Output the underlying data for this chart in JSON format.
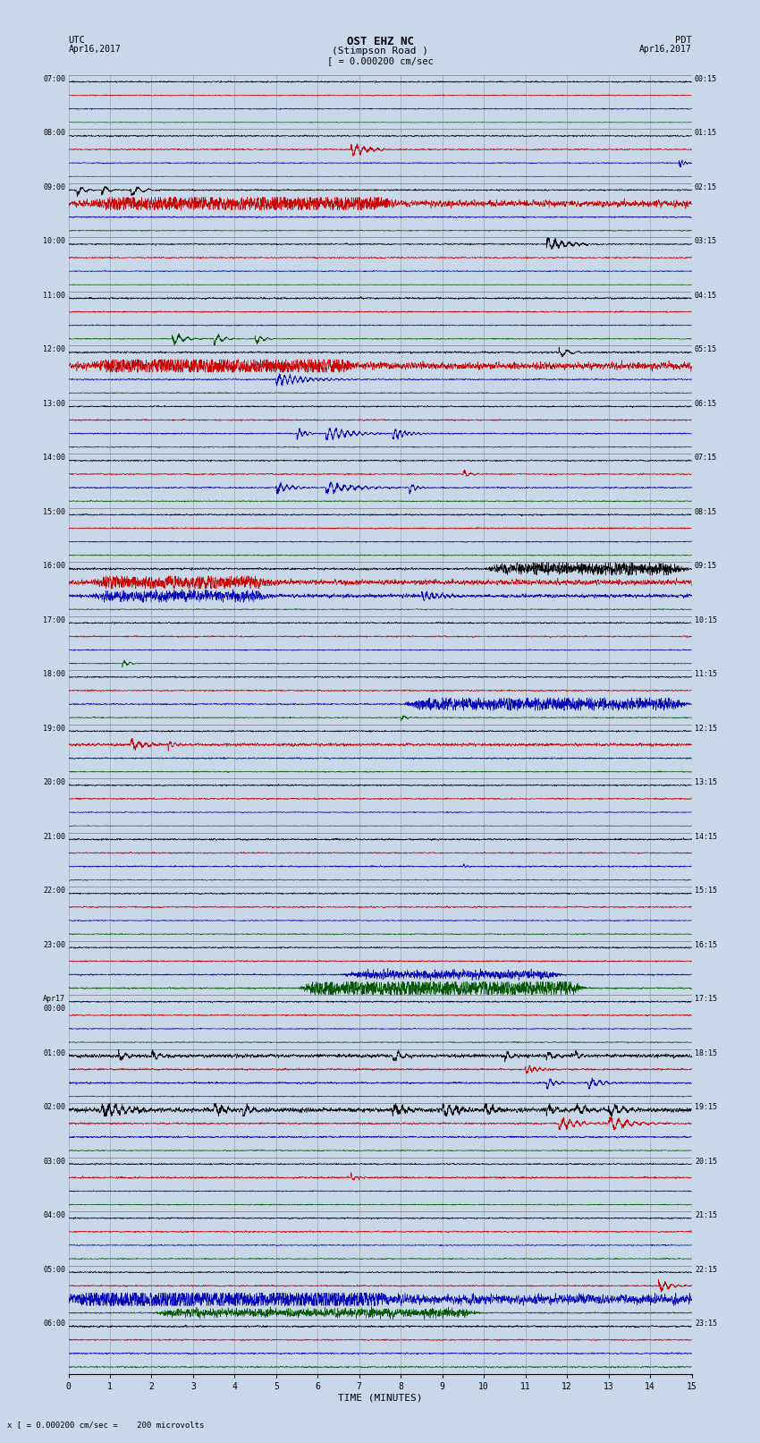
{
  "title_line1": "OST EHZ NC",
  "title_line2": "(Stimpson Road )",
  "title_line3": "[ = 0.000200 cm/sec",
  "label_utc": "UTC",
  "label_date_left": "Apr16,2017",
  "label_pdt": "PDT",
  "label_date_right": "Apr16,2017",
  "xlabel": "TIME (MINUTES)",
  "footer": "x [ = 0.000200 cm/sec =    200 microvolts",
  "xlim": [
    0,
    15
  ],
  "xticks": [
    0,
    1,
    2,
    3,
    4,
    5,
    6,
    7,
    8,
    9,
    10,
    11,
    12,
    13,
    14,
    15
  ],
  "bg_color": "#c8d8e8",
  "trace_black": "#000000",
  "trace_red": "#cc0000",
  "trace_blue": "#0000bb",
  "trace_green": "#005500",
  "grid_color": "#888888",
  "rows": [
    {
      "utc": "07:00",
      "pdt": "00:15"
    },
    {
      "utc": "08:00",
      "pdt": "01:15"
    },
    {
      "utc": "09:00",
      "pdt": "02:15"
    },
    {
      "utc": "10:00",
      "pdt": "03:15"
    },
    {
      "utc": "11:00",
      "pdt": "04:15"
    },
    {
      "utc": "12:00",
      "pdt": "05:15"
    },
    {
      "utc": "13:00",
      "pdt": "06:15"
    },
    {
      "utc": "14:00",
      "pdt": "07:15"
    },
    {
      "utc": "15:00",
      "pdt": "08:15"
    },
    {
      "utc": "16:00",
      "pdt": "09:15"
    },
    {
      "utc": "17:00",
      "pdt": "10:15"
    },
    {
      "utc": "18:00",
      "pdt": "11:15"
    },
    {
      "utc": "19:00",
      "pdt": "12:15"
    },
    {
      "utc": "20:00",
      "pdt": "13:15"
    },
    {
      "utc": "21:00",
      "pdt": "14:15"
    },
    {
      "utc": "22:00",
      "pdt": "15:15"
    },
    {
      "utc": "23:00",
      "pdt": "16:15"
    },
    {
      "utc": "Apr17\n00:00",
      "pdt": "17:15"
    },
    {
      "utc": "01:00",
      "pdt": "18:15"
    },
    {
      "utc": "02:00",
      "pdt": "19:15"
    },
    {
      "utc": "03:00",
      "pdt": "20:15"
    },
    {
      "utc": "04:00",
      "pdt": "21:15"
    },
    {
      "utc": "05:00",
      "pdt": "22:15"
    },
    {
      "utc": "06:00",
      "pdt": "23:15"
    }
  ],
  "seed": 12345
}
